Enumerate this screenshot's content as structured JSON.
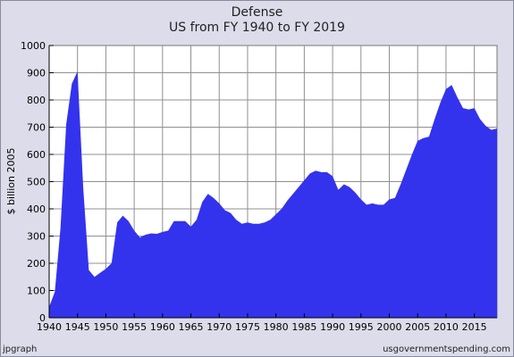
{
  "chart_data": {
    "type": "area",
    "title": "Defense",
    "subtitle": "US from FY 1940 to FY 2019",
    "xlabel": "",
    "ylabel": "$ billion 2005",
    "xlim": [
      1940,
      2019
    ],
    "ylim": [
      0,
      1000
    ],
    "grid": true,
    "x_ticks": [
      "1940",
      "1945",
      "1950",
      "1955",
      "1960",
      "1965",
      "1970",
      "1975",
      "1980",
      "1985",
      "1990",
      "1995",
      "2000",
      "2005",
      "2010",
      "2015"
    ],
    "y_ticks": [
      "0",
      "100",
      "200",
      "300",
      "400",
      "500",
      "600",
      "700",
      "800",
      "900",
      "1000"
    ],
    "fill_color": "#3333ee",
    "series": [
      {
        "x": [
          1940,
          1941,
          1942,
          1943,
          1944,
          1945,
          1946,
          1947,
          1948,
          1949,
          1950,
          1951,
          1952,
          1953,
          1954,
          1955,
          1956,
          1957,
          1958,
          1959,
          1960,
          1961,
          1962,
          1963,
          1964,
          1965,
          1966,
          1967,
          1968,
          1969,
          1970,
          1971,
          1972,
          1973,
          1974,
          1975,
          1976,
          1977,
          1978,
          1979,
          1980,
          1981,
          1982,
          1983,
          1984,
          1985,
          1986,
          1987,
          1988,
          1989,
          1990,
          1991,
          1992,
          1993,
          1994,
          1995,
          1996,
          1997,
          1998,
          1999,
          2000,
          2001,
          2002,
          2003,
          2004,
          2005,
          2006,
          2007,
          2008,
          2009,
          2010,
          2011,
          2012,
          2013,
          2014,
          2015,
          2016,
          2017,
          2018,
          2019
        ],
        "y": [
          40,
          95,
          330,
          710,
          860,
          905,
          480,
          175,
          150,
          165,
          180,
          200,
          350,
          375,
          355,
          320,
          295,
          305,
          310,
          308,
          315,
          320,
          355,
          355,
          355,
          335,
          360,
          425,
          455,
          440,
          420,
          395,
          385,
          360,
          345,
          350,
          345,
          345,
          350,
          360,
          380,
          400,
          430,
          455,
          480,
          505,
          530,
          540,
          535,
          535,
          520,
          470,
          490,
          480,
          460,
          435,
          415,
          420,
          415,
          415,
          435,
          440,
          490,
          545,
          600,
          650,
          660,
          665,
          730,
          790,
          840,
          855,
          810,
          770,
          765,
          770,
          730,
          705,
          690,
          695
        ]
      }
    ]
  },
  "footer": {
    "left": "jpgraph",
    "right": "usgovernmentspending.com"
  }
}
